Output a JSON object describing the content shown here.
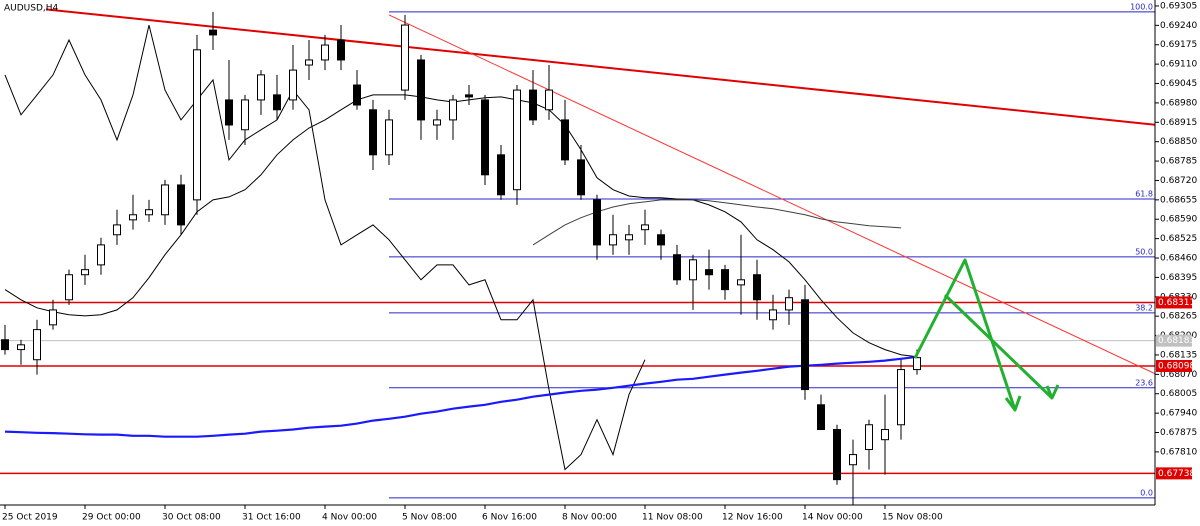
{
  "chart_data": {
    "type": "candlestick",
    "title": "AUDUSD,H4",
    "categories": [
      "25 Oct 2019",
      null,
      null,
      null,
      null,
      "29 Oct 00:00",
      null,
      null,
      null,
      null,
      "30 Oct 08:00",
      null,
      null,
      null,
      null,
      "31 Oct 16:00",
      null,
      null,
      null,
      null,
      "4 Nov 00:00",
      null,
      null,
      null,
      null,
      "5 Nov 08:00",
      null,
      null,
      null,
      null,
      "6 Nov 16:00",
      null,
      null,
      null,
      null,
      "8 Nov 00:00",
      null,
      null,
      null,
      null,
      "11 Nov 08:00",
      null,
      null,
      null,
      null,
      "12 Nov 16:00",
      null,
      null,
      null,
      null,
      "14 Nov 00:00",
      null,
      null,
      null,
      null,
      "15 Nov 08:00",
      null,
      null
    ],
    "open": [
      0.68186,
      0.68153,
      0.68119,
      0.68236,
      0.6832,
      0.68404,
      0.68437,
      0.68538,
      0.68588,
      0.68605,
      0.68605,
      0.68705,
      0.68655,
      0.69224,
      0.6899,
      0.6889,
      0.6899,
      0.69007,
      0.6899,
      0.69107,
      0.69124,
      0.69191,
      0.6904,
      0.68957,
      0.68806,
      0.69023,
      0.69124,
      0.68906,
      0.68923,
      0.69007,
      0.6899,
      0.68806,
      0.68689,
      0.69023,
      0.68957,
      0.68923,
      0.68789,
      0.68655,
      0.68504,
      0.68521,
      0.68555,
      0.68538,
      0.68471,
      0.68387,
      0.68421,
      0.68421,
      0.6837,
      0.68404,
      0.68253,
      0.68286,
      0.6832,
      0.67968,
      0.67885,
      0.67767,
      0.67818,
      0.67851,
      0.67901,
      0.68086
    ],
    "high": [
      0.68236,
      0.68186,
      0.68253,
      0.6832,
      0.68421,
      0.68471,
      0.68528,
      0.68622,
      0.68672,
      0.68655,
      0.68722,
      0.68739,
      0.69208,
      0.69285,
      0.69124,
      0.69007,
      0.6909,
      0.69074,
      0.69174,
      0.69191,
      0.69208,
      0.69241,
      0.6909,
      0.6899,
      0.68957,
      0.69275,
      0.69141,
      0.68957,
      0.69007,
      0.6904,
      0.69007,
      0.68839,
      0.6904,
      0.6909,
      0.69107,
      0.6899,
      0.68839,
      0.68672,
      0.68605,
      0.68571,
      0.68622,
      0.68555,
      0.68504,
      0.68471,
      0.68488,
      0.68437,
      0.68538,
      0.68454,
      0.68337,
      0.68354,
      0.6837,
      0.68002,
      0.67901,
      0.67851,
      0.67918,
      0.68002,
      0.68119,
      0.68153
    ],
    "low": [
      0.68136,
      0.68102,
      0.68069,
      0.6822,
      0.68303,
      0.6837,
      0.68404,
      0.68504,
      0.68555,
      0.68581,
      0.68571,
      0.68538,
      0.68605,
      0.69158,
      0.68856,
      0.68839,
      0.6894,
      0.68923,
      0.68957,
      0.69057,
      0.6909,
      0.6909,
      0.68957,
      0.68755,
      0.68772,
      0.6899,
      0.68856,
      0.68856,
      0.68856,
      0.68973,
      0.68705,
      0.68655,
      0.68638,
      0.68906,
      0.68923,
      0.68772,
      0.68655,
      0.68454,
      0.68471,
      0.68471,
      0.68504,
      0.68454,
      0.6837,
      0.68286,
      0.68354,
      0.6832,
      0.6827,
      0.68253,
      0.6822,
      0.68236,
      0.67985,
      0.67885,
      0.677,
      0.67633,
      0.67751,
      0.67734,
      0.67851,
      0.68069
    ],
    "close": [
      0.68153,
      0.68169,
      0.6822,
      0.68286,
      0.68404,
      0.68421,
      0.68504,
      0.68571,
      0.68605,
      0.68622,
      0.68705,
      0.68571,
      0.69158,
      0.69208,
      0.68906,
      0.6899,
      0.69074,
      0.68957,
      0.6909,
      0.69124,
      0.69174,
      0.69124,
      0.68973,
      0.68806,
      0.68923,
      0.69241,
      0.68923,
      0.68923,
      0.6899,
      0.69,
      0.68739,
      0.68672,
      0.69023,
      0.68923,
      0.69023,
      0.68789,
      0.68672,
      0.68504,
      0.68538,
      0.68538,
      0.68571,
      0.68504,
      0.68387,
      0.68454,
      0.68404,
      0.68354,
      0.68387,
      0.6832,
      0.68286,
      0.68327,
      0.68019,
      0.67885,
      0.67717,
      0.67801,
      0.67901,
      0.67885,
      0.68086,
      0.68126
    ],
    "series": [
      {
        "color": "#000000",
        "values": [
          0.69074,
          0.6894,
          0.69007,
          0.69074,
          0.69191,
          0.69074,
          0.6899,
          0.68856,
          0.69007,
          0.69241,
          0.69023,
          0.68923,
          0.6899,
          0.69057,
          0.68789,
          0.68856,
          0.6889,
          0.68923,
          0.69023,
          0.68957,
          0.68655,
          0.68504,
          0.68538,
          0.68571,
          0.68521,
          0.68454,
          0.68387,
          0.68437,
          0.68437,
          0.6837,
          0.68387,
          0.68253,
          0.68253,
          0.6832,
          0.68019,
          0.67751,
          0.67801,
          0.67918,
          0.67801,
          0.68002,
          0.68119,
          null,
          null,
          null,
          null,
          null,
          null,
          null,
          null,
          null,
          null,
          null,
          null,
          null,
          null,
          null,
          null,
          null
        ]
      },
      {
        "color": "#000000",
        "values": [
          0.68354,
          0.6832,
          0.68293,
          0.6828,
          0.6827,
          0.68266,
          0.6827,
          0.68286,
          0.68327,
          0.68394,
          0.68471,
          0.68538,
          0.68615,
          0.68655,
          0.68665,
          0.68689,
          0.68739,
          0.68806,
          0.68856,
          0.68896,
          0.68923,
          0.68957,
          0.6899,
          0.69007,
          0.69007,
          0.69007,
          0.69,
          0.6899,
          0.68983,
          0.6899,
          0.68997,
          0.69,
          0.6899,
          0.6898,
          0.68957,
          0.68906,
          0.68823,
          0.68729,
          0.68689,
          0.68668,
          0.68662,
          0.68662,
          0.68658,
          0.68655,
          0.68638,
          0.68615,
          0.68581,
          0.68521,
          0.68488,
          0.68447,
          0.68387,
          0.6832,
          0.6826,
          0.68209,
          0.68176,
          0.68153,
          0.68136,
          0.68129
        ]
      },
      {
        "color": "#404040",
        "values": [
          null,
          null,
          null,
          null,
          null,
          null,
          null,
          null,
          null,
          null,
          null,
          null,
          null,
          null,
          null,
          null,
          null,
          null,
          null,
          null,
          null,
          null,
          null,
          null,
          null,
          null,
          null,
          null,
          null,
          null,
          null,
          null,
          null,
          0.68504,
          0.68538,
          0.68571,
          0.68595,
          0.68615,
          0.68631,
          0.68642,
          0.68648,
          0.68655,
          0.68655,
          0.68655,
          0.68652,
          0.68645,
          0.68638,
          0.68631,
          0.68625,
          0.68615,
          0.68605,
          0.68591,
          0.68581,
          0.68575,
          0.68568,
          0.68565,
          0.68561,
          null
        ]
      },
      {
        "color": "#1a1aff",
        "values": [
          0.67878,
          0.67876,
          0.67874,
          0.67873,
          0.67871,
          0.67869,
          0.67868,
          0.67868,
          0.67864,
          0.67864,
          0.67861,
          0.67861,
          0.67861,
          0.67864,
          0.67868,
          0.67871,
          0.67878,
          0.67881,
          0.67885,
          0.67891,
          0.67895,
          0.67898,
          0.67905,
          0.67915,
          0.67921,
          0.67928,
          0.67938,
          0.67945,
          0.67955,
          0.67962,
          0.67968,
          0.67978,
          0.67985,
          0.67995,
          0.68002,
          0.68009,
          0.68015,
          0.68019,
          0.68025,
          0.68032,
          0.68039,
          0.68045,
          0.68052,
          0.68055,
          0.68062,
          0.68069,
          0.68076,
          0.68082,
          0.68089,
          0.68096,
          0.68099,
          0.68102,
          0.68106,
          0.68109,
          0.68112,
          0.68116,
          0.68122,
          0.68129
        ]
      }
    ],
    "ylim": [
      0.67632,
      0.69325
    ],
    "yticks": [
      0.69305,
      {
        "value": 0.6924,
        "label": "0.69240"
      },
      0.69175,
      {
        "value": 0.6911,
        "label": "0.69110"
      },
      0.69045,
      {
        "value": 0.6898,
        "label": "0.68980"
      },
      0.68915,
      {
        "value": 0.6885,
        "label": "0.68850"
      },
      0.68785,
      {
        "value": 0.6872,
        "label": "0.68720"
      },
      0.68655,
      {
        "value": 0.6859,
        "label": "0.68590"
      },
      0.68525,
      {
        "value": 0.6846,
        "label": "0.68460"
      },
      0.68395,
      {
        "value": 0.6833,
        "label": "0.68330"
      },
      0.68265,
      {
        "value": 0.682,
        "label": "0.68200"
      },
      0.68135,
      {
        "value": 0.6807,
        "label": "0.68070"
      },
      0.68005,
      {
        "value": 0.6794,
        "label": "0.67940"
      },
      0.67875,
      {
        "value": 0.6781,
        "label": "0.67810"
      }
    ],
    "trendlines": [
      {
        "color": "#e00000",
        "from": [
          0,
          0.69308
        ],
        "to": [
          72,
          0.68906
        ]
      },
      {
        "color": "#ff3030",
        "from": [
          24,
          0.69275
        ],
        "to": [
          72,
          0.68069
        ]
      }
    ],
    "fibonacci": {
      "color": "#2828c8",
      "start": 24,
      "levels": [
        {
          "label": "100.0",
          "price": 0.69285
        },
        {
          "label": "61.8",
          "price": 0.68658
        },
        {
          "label": "50.0",
          "price": 0.68464
        },
        {
          "label": "38.2",
          "price": 0.68276
        },
        {
          "label": "23.6",
          "price": 0.68025
        },
        {
          "label": "0.0",
          "price": 0.67656
        }
      ]
    },
    "levels": [
      {
        "value": 0.68311,
        "color": "#e00000"
      },
      {
        "value": 0.68098,
        "color": "#e00000"
      },
      {
        "value": 0.67738,
        "color": "#e00000"
      }
    ],
    "last_price": {
      "value": 0.68183,
      "color": "#c0c0c0"
    },
    "bull_color": "#ffffff",
    "bear_color": "#000000"
  }
}
